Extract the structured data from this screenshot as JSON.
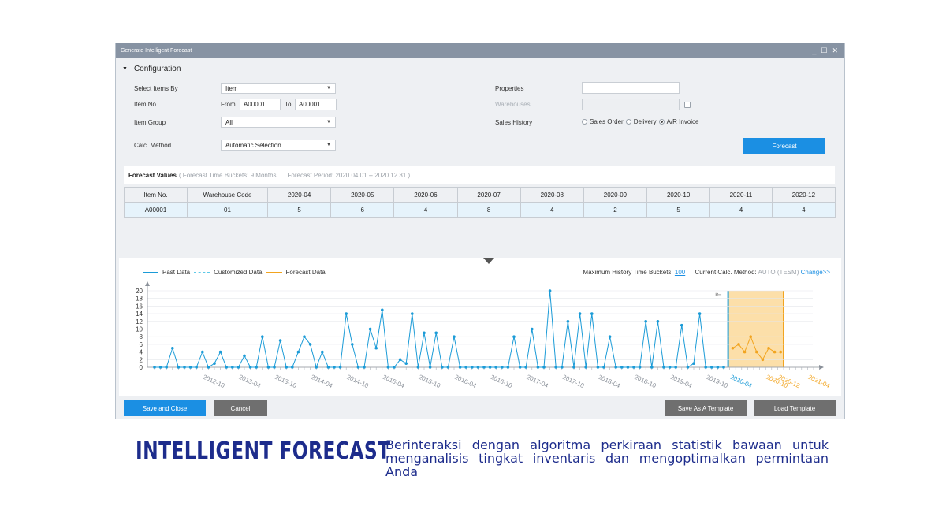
{
  "window": {
    "title": "Generate Intelligent Forecast",
    "controls": [
      "_",
      "☐",
      "✕"
    ]
  },
  "config": {
    "section_label": "Configuration",
    "select_items_by": {
      "label": "Select Items By",
      "value": "Item"
    },
    "item_no": {
      "label": "Item No.",
      "from_label": "From",
      "from_value": "A00001",
      "to_label": "To",
      "to_value": "A00001"
    },
    "item_group": {
      "label": "Item Group",
      "value": "All"
    },
    "calc_method": {
      "label": "Calc. Method",
      "value": "Automatic Selection"
    },
    "properties": {
      "label": "Properties",
      "value": ""
    },
    "warehouses": {
      "label": "Warehouses",
      "value": ""
    },
    "sales_history": {
      "label": "Sales History",
      "options": [
        "Sales Order",
        "Delivery",
        "A/R Invoice"
      ],
      "selected": "A/R Invoice"
    },
    "forecast_button": "Forecast"
  },
  "forecast_values": {
    "title": "Forecast Values",
    "buckets": "( Forecast Time Buckets: 9 Months",
    "period": "Forecast Period: 2020.04.01 -- 2020.12.31 )",
    "columns": [
      "Item No.",
      "Warehouse Code",
      "2020-04",
      "2020-05",
      "2020-06",
      "2020-07",
      "2020-08",
      "2020-09",
      "2020-10",
      "2020-11",
      "2020-12"
    ],
    "rows": [
      [
        "A00001",
        "01",
        "5",
        "6",
        "4",
        "8",
        "4",
        "2",
        "5",
        "4",
        "4"
      ]
    ]
  },
  "chart_options": {
    "max_history_label": "Maximum History Time Buckets:",
    "max_history_value": "100",
    "calc_method_label": "Current Calc. Method:",
    "calc_method_value": "AUTO (TESM)",
    "change_link": "Change>>"
  },
  "chart_data": {
    "type": "line",
    "series": [
      {
        "name": "Past Data",
        "values": [
          0,
          0,
          0,
          5,
          0,
          0,
          0,
          0,
          4,
          0,
          1,
          4,
          0,
          0,
          0,
          3,
          0,
          0,
          8,
          0,
          0,
          7,
          0,
          0,
          4,
          8,
          6,
          0,
          4,
          0,
          0,
          0,
          14,
          6,
          0,
          0,
          10,
          5,
          15,
          0,
          0,
          2,
          1,
          14,
          0,
          9,
          0,
          9,
          0,
          0,
          8,
          0,
          0,
          0,
          0,
          0,
          0,
          0,
          0,
          0,
          8,
          0,
          0,
          10,
          0,
          0,
          20,
          0,
          0,
          12,
          0,
          14,
          0,
          14,
          0,
          0,
          8,
          0,
          0,
          0,
          0,
          0,
          12,
          0,
          12,
          0,
          0,
          0,
          11,
          0,
          1,
          14,
          0,
          0,
          0,
          0
        ]
      },
      {
        "name": "Customized Data",
        "values": []
      },
      {
        "name": "Forecast Data",
        "values": [
          5,
          6,
          4,
          8,
          4,
          2,
          5,
          4,
          4
        ]
      }
    ],
    "x_tick_labels": [
      "2012-10",
      "2013-04",
      "2013-10",
      "2014-04",
      "2014-10",
      "2015-04",
      "2015-10",
      "2016-04",
      "2016-10",
      "2017-04",
      "2017-10",
      "2018-04",
      "2018-10",
      "2019-04",
      "2019-10",
      "2020-04",
      "2020-10",
      "2020-12",
      "2021-04"
    ],
    "y_ticks": [
      0,
      2,
      4,
      6,
      8,
      10,
      12,
      14,
      16,
      18,
      20
    ],
    "ylim": [
      0,
      20
    ],
    "colors": {
      "past": "#1b9bd7",
      "customized": "#5fc9e8",
      "forecast": "#f2a41f",
      "forecast_band": "#fbd99a"
    }
  },
  "buttons": {
    "save_close": "Save and Close",
    "cancel": "Cancel",
    "save_template": "Save As A Template",
    "load_template": "Load Template"
  },
  "caption": {
    "title": "INTELLIGENT FORECAST",
    "text": "Berinteraksi dengan algoritma perkiraan statistik bawaan untuk menganalisis tingkat inventaris dan mengoptimalkan permintaan Anda"
  }
}
